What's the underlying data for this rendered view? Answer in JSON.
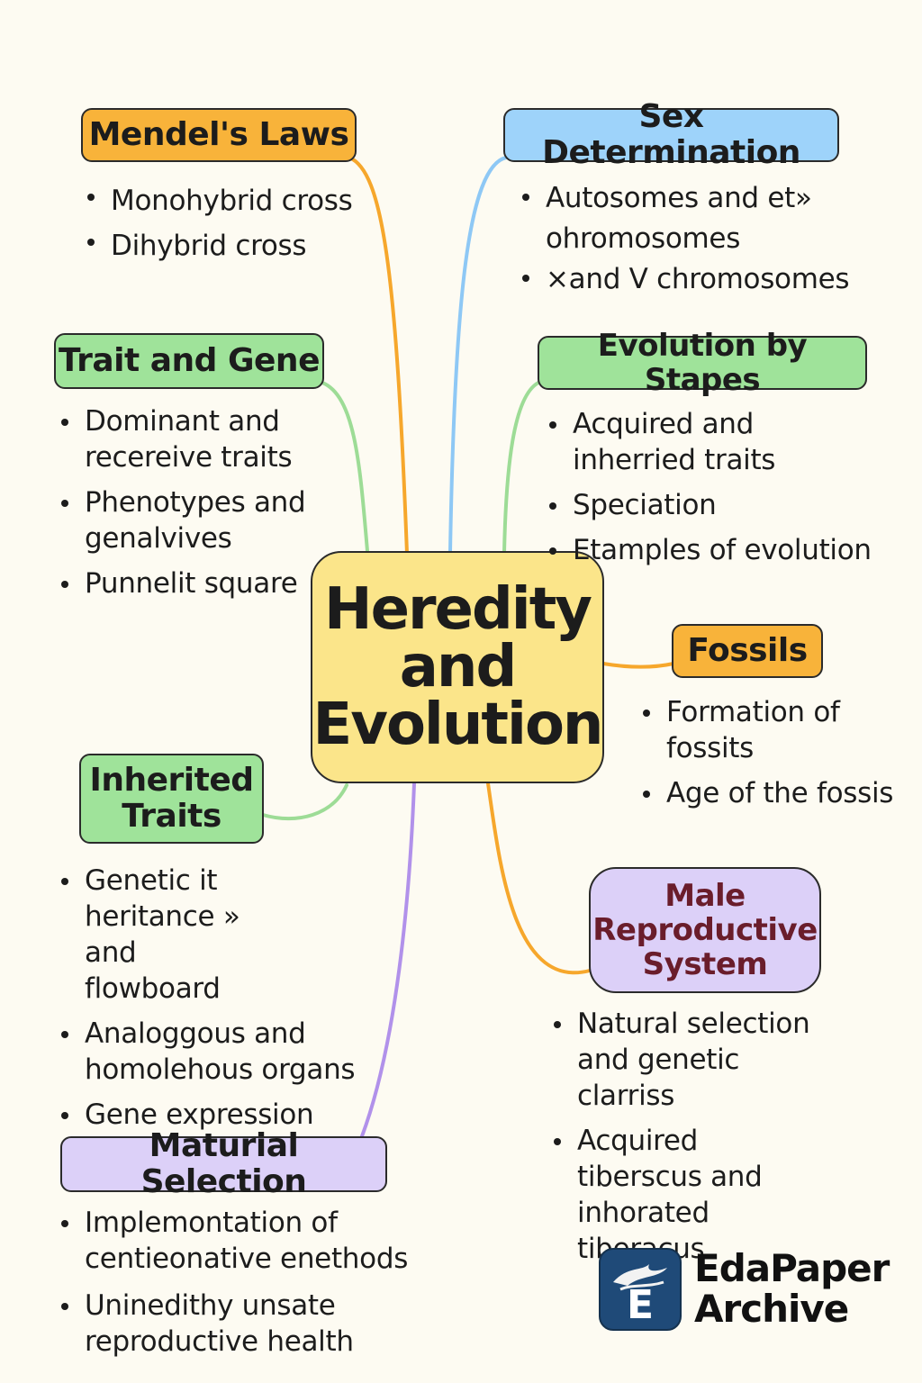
{
  "central": {
    "line1": "Heredity",
    "line2": "and",
    "line3": "Evolution"
  },
  "topics": {
    "mendels_laws": {
      "title": "Mendel's Laws",
      "bullets": [
        "Monohybrid cross",
        "Dihybrid cross"
      ]
    },
    "sex_determination": {
      "title": "Sex Determination",
      "bullets": [
        "Autosomes and et» ohromosomes",
        "×and V chromosomes"
      ]
    },
    "trait_and_gene": {
      "title": "Trait and Gene",
      "bullets": [
        "Dominant and recereive traits",
        "Phenotypes and genalvives",
        "Punnelit square"
      ]
    },
    "evolution_by_stapes": {
      "title": "Evolution by Stapes",
      "bullets": [
        "Acquired and inherried traits",
        "Speciation",
        "Etamples of evolution"
      ]
    },
    "fossils": {
      "title": "Fossils",
      "bullets": [
        "Formation of fossits",
        "Age of the fossis"
      ]
    },
    "inherited_traits": {
      "title_line1": "Inherited",
      "title_line2": "Traits",
      "bullets": [
        "Genetic it heritance » and flowboard",
        "Analoggous and homolehous organs",
        "Gene expression"
      ]
    },
    "male_reproductive_system": {
      "title_line1": "Male",
      "title_line2": "Reproductive",
      "title_line3": "System",
      "bullets": [
        "Natural selection and genetic clarriss",
        "Acquired tiberscus and inhorated tiberacus"
      ]
    },
    "maturial_selection": {
      "title": "Maturial Selection",
      "bullets": [
        "Implemontation of centieonative enethods",
        "Uninedithy unsate reproductive health"
      ]
    }
  },
  "logo": {
    "line1": "EdaPaper",
    "line2": "Archive",
    "badge_letter": "E"
  },
  "colors": {
    "background": "#fdfbf2",
    "central": "#fbe58a",
    "orange": "#f8b33a",
    "blue": "#9ed3fa",
    "green": "#9fe39a",
    "purple": "#dcd0f8",
    "purple_text": "#6a1d2b",
    "logo_badge": "#1f4a78"
  }
}
